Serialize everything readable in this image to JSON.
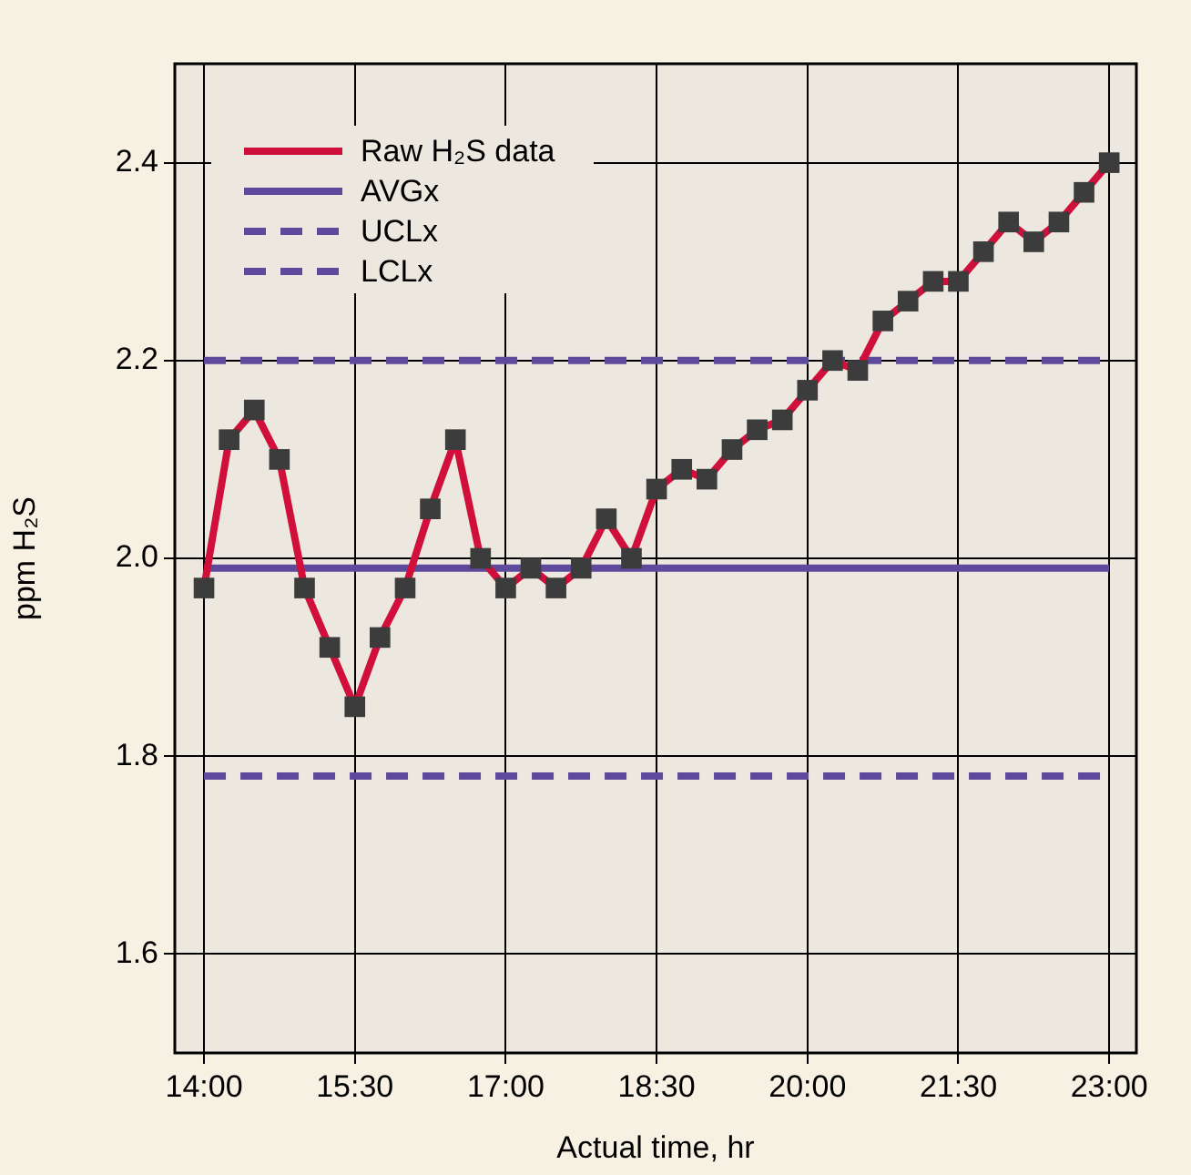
{
  "chart_data": {
    "type": "line",
    "xlabel": "Actual time, hr",
    "ylabel": "ppm H₂S",
    "xlim": [
      13.71,
      23.27
    ],
    "ylim": [
      1.5,
      2.5
    ],
    "xticks": [
      {
        "value": 14,
        "label": "14:00"
      },
      {
        "value": 15.5,
        "label": "15:30"
      },
      {
        "value": 17,
        "label": "17:00"
      },
      {
        "value": 18.5,
        "label": "18:30"
      },
      {
        "value": 20,
        "label": "20:00"
      },
      {
        "value": 21.5,
        "label": "21:30"
      },
      {
        "value": 23,
        "label": "23:00"
      }
    ],
    "yticks": [
      1.6,
      1.8,
      {
        "value": 2.0,
        "label": "2.0"
      },
      2.2,
      2.4
    ],
    "grid": true,
    "legend": "top left",
    "series": [
      {
        "name": "Raw H₂S data",
        "color": "#d0103a",
        "marker": "square",
        "colors": [
          "#3c3c3c",
          "#3c3c3c",
          "#3c3c3c",
          "#3c3c3c",
          "#3c3c3c",
          "#3c3c3c",
          "#3c3c3c",
          "#3c3c3c",
          "#3c3c3c",
          "#3c3c3c",
          "#3c3c3c",
          "#3c3c3c",
          "#3c3c3c",
          "#3c3c3c",
          "#3c3c3c",
          "#3c3c3c",
          "#3c3c3c",
          "#3c3c3c",
          "#3c3c3c",
          "#3c3c3c",
          "#3c3c3c",
          "#3c3c3c",
          "#3c3c3c",
          "#3c3c3c",
          "#3c3c3c",
          "#3c3c3c",
          "#3c3c3c",
          "#3c3c3c",
          "#3c3c3c",
          "#3c3c3c",
          "#3c3c3c",
          "#3c3c3c",
          "#3c3c3c",
          "#3c3c3c",
          "#3c3c3c",
          "#3c3c3c",
          "#3c3c3c"
        ],
        "x": [
          14,
          14.25,
          14.5,
          14.75,
          15,
          15.25,
          15.5,
          15.75,
          16,
          16.25,
          16.5,
          16.75,
          17,
          17.25,
          17.5,
          17.75,
          18,
          18.25,
          18.5,
          18.75,
          19,
          19.25,
          19.5,
          19.75,
          20,
          20.25,
          20.5,
          20.75,
          21,
          21.25,
          21.5,
          21.75,
          22,
          22.25,
          22.5,
          22.75,
          23
        ],
        "values": [
          1.97,
          2.12,
          2.15,
          2.1,
          1.97,
          1.91,
          1.85,
          1.92,
          1.97,
          2.05,
          2.12,
          2.0,
          1.97,
          1.99,
          1.97,
          1.99,
          2.04,
          2.0,
          2.07,
          2.09,
          2.08,
          2.11,
          2.13,
          2.14,
          2.17,
          2.2,
          2.19,
          2.24,
          2.26,
          2.28,
          2.28,
          2.31,
          2.34,
          2.32,
          2.34,
          2.37,
          2.4
        ]
      },
      {
        "name": "AVGx",
        "color": "#5e4a9c",
        "marker": "none",
        "line_style": "solid",
        "x": [
          14,
          23
        ],
        "values": [
          1.99,
          1.99
        ]
      },
      {
        "name": "UCLx",
        "color": "#5e4a9c",
        "marker": "none",
        "line_style": "dashed",
        "x": [
          14,
          23
        ],
        "values": [
          2.2,
          2.2
        ]
      },
      {
        "name": "LCLx",
        "color": "#5e4a9c",
        "marker": "none",
        "line_style": "dashed",
        "x": [
          14,
          23
        ],
        "values": [
          1.78,
          1.78
        ]
      }
    ]
  }
}
